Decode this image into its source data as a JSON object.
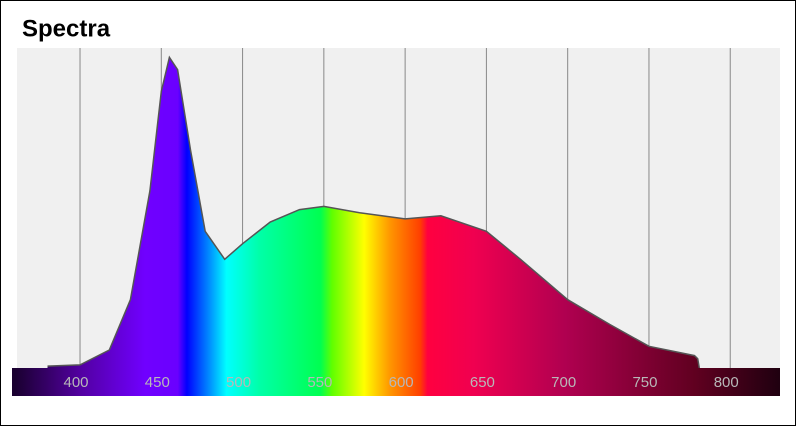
{
  "chart_data": {
    "type": "area",
    "title": "Spectra",
    "x": [
      380,
      400,
      418,
      431,
      443,
      450,
      455,
      460,
      468,
      477,
      489,
      500,
      517,
      535,
      550,
      572,
      600,
      622,
      650,
      671,
      700,
      726,
      750,
      778,
      780,
      781
    ],
    "values": [
      0.006,
      0.01,
      0.058,
      0.22,
      0.57,
      0.89,
      1.0,
      0.96,
      0.7,
      0.44,
      0.35,
      0.4,
      0.47,
      0.51,
      0.52,
      0.5,
      0.48,
      0.49,
      0.44,
      0.35,
      0.22,
      0.14,
      0.07,
      0.04,
      0.03,
      0
    ],
    "xlim": [
      360,
      830
    ],
    "ylim": [
      0,
      1.03
    ],
    "xticks": [
      400,
      450,
      500,
      550,
      600,
      650,
      700,
      750,
      800
    ],
    "grid": true,
    "color": "#555555"
  }
}
